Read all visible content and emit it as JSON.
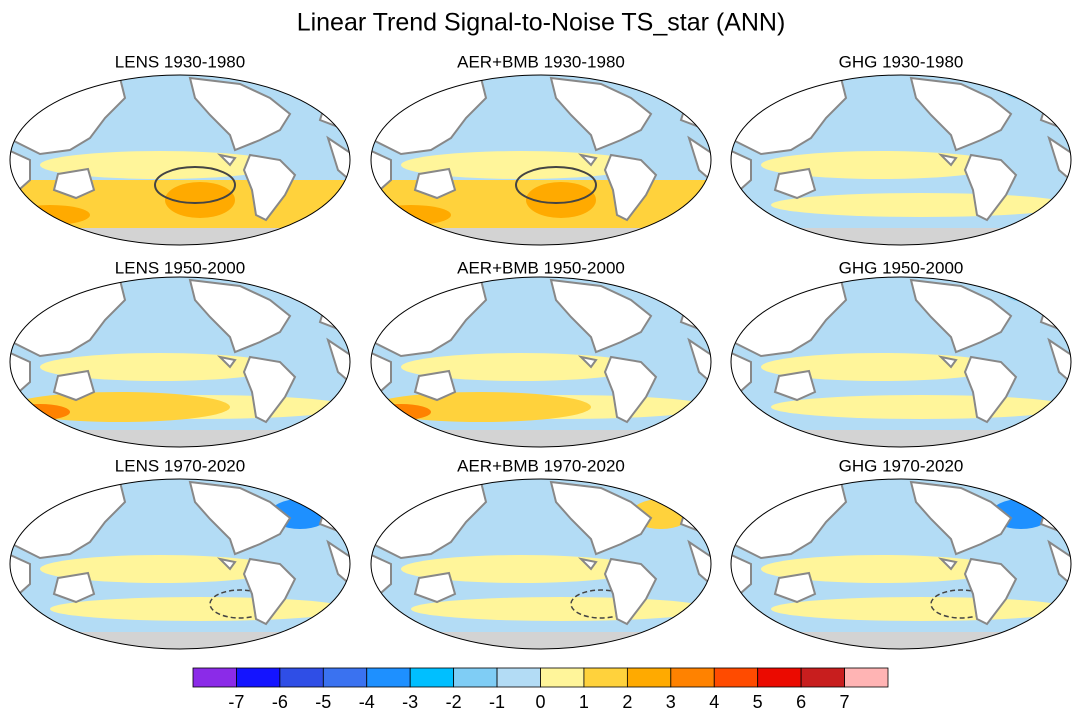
{
  "title": "Linear Trend Signal-to-Noise TS_star (ANN)",
  "panels": [
    {
      "title": "LENS 1930-1980"
    },
    {
      "title": "AER+BMB 1930-1980"
    },
    {
      "title": "GHG 1930-1980"
    },
    {
      "title": "LENS 1950-2000"
    },
    {
      "title": "AER+BMB 1950-2000"
    },
    {
      "title": "GHG 1950-2000"
    },
    {
      "title": "LENS 1970-2020"
    },
    {
      "title": "AER+BMB 1970-2020"
    },
    {
      "title": "GHG 1970-2020"
    }
  ],
  "colorbar": {
    "colors": [
      "#8b2be8",
      "#1414ff",
      "#2f4ee6",
      "#3a72f0",
      "#1e90ff",
      "#00bfff",
      "#7fcdf5",
      "#b3dcf5",
      "#fff59a",
      "#ffd23c",
      "#ffaa00",
      "#ff8200",
      "#ff4b00",
      "#eb0a00",
      "#c81e1e",
      "#ffb4b4"
    ],
    "labels": [
      -7,
      -6,
      -5,
      -4,
      -3,
      -2,
      -1,
      0,
      1,
      2,
      3,
      4,
      5,
      6,
      7
    ]
  }
}
